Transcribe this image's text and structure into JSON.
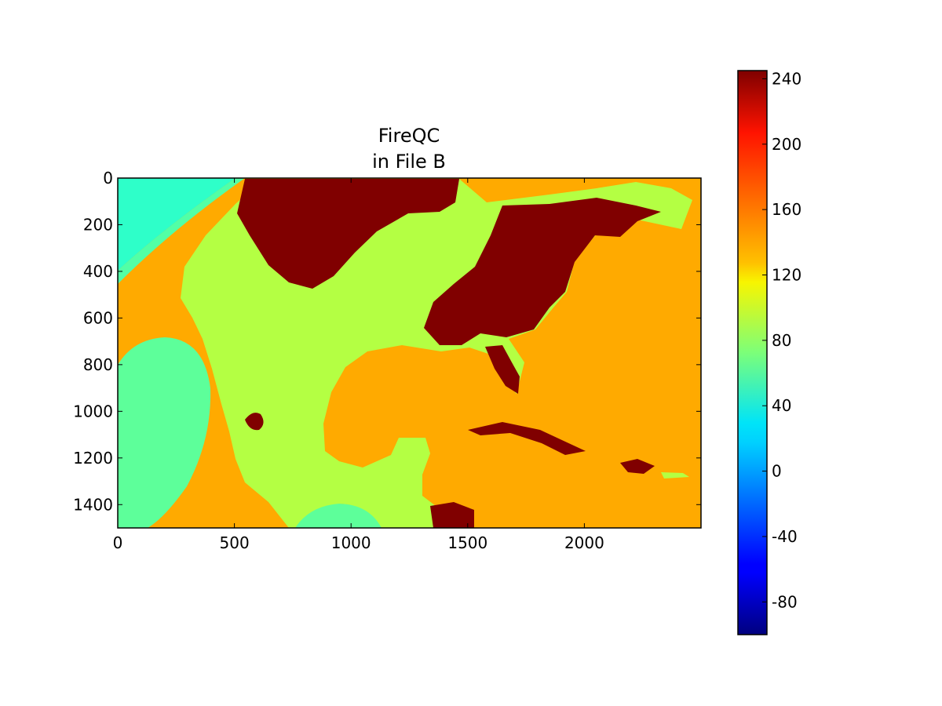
{
  "chart_data": {
    "type": "heatmap",
    "title_lines": [
      "FireQC",
      "in File B"
    ],
    "xlabel": "",
    "ylabel": "",
    "xlim": [
      0,
      2500
    ],
    "ylim": [
      1500,
      0
    ],
    "x_ticks": [
      0,
      500,
      1000,
      1500,
      2000
    ],
    "y_ticks": [
      0,
      200,
      400,
      600,
      800,
      1000,
      1200,
      1400
    ],
    "colormap": "jet",
    "colorbar": {
      "vmin": -100,
      "vmax": 245,
      "ticks": [
        -80,
        -40,
        0,
        40,
        80,
        120,
        160,
        200,
        240
      ]
    },
    "value_classes": [
      {
        "value": 155,
        "color": "#ffaa00",
        "region": "background"
      },
      {
        "value": 105,
        "color": "#b4ff43",
        "region": "land"
      },
      {
        "value": 245,
        "color": "#800000",
        "region": "cloud"
      },
      {
        "value": 70,
        "color": "#5dff9a",
        "region": "off-disk"
      },
      {
        "value": 50,
        "color": "#2effc9",
        "region": "corner"
      }
    ],
    "grid": false
  }
}
